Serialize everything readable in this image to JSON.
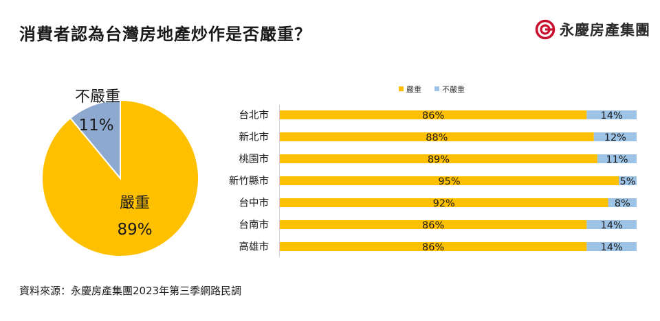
{
  "header": {
    "title": "消費者認為台灣房地產炒作是否嚴重？",
    "brand": "永慶房產集團"
  },
  "footer": {
    "source": "資料來源：永慶房產集團2023年第三季網路民調"
  },
  "colors": {
    "severe": "#FFC000",
    "not_severe": "#9DC3E6",
    "pie_not_severe": "#8EA9D0",
    "brand_red": "#C8102E"
  },
  "icons": {
    "brand": "spiral-logo-icon"
  },
  "chart_data": [
    {
      "type": "pie",
      "slices": [
        {
          "label": "嚴重",
          "value": 89,
          "display": "89%"
        },
        {
          "label": "不嚴重",
          "value": 11,
          "display": "11%"
        }
      ]
    },
    {
      "type": "bar",
      "orientation": "horizontal",
      "stacked": "percent",
      "categories": [
        "台北市",
        "新北市",
        "桃園市",
        "新竹縣市",
        "台中市",
        "台南市",
        "高雄市"
      ],
      "series": [
        {
          "name": "嚴重",
          "values": [
            86,
            88,
            89,
            95,
            92,
            86,
            86
          ]
        },
        {
          "name": "不嚴重",
          "values": [
            14,
            12,
            11,
            5,
            8,
            14,
            14
          ]
        }
      ],
      "legend": "top-center",
      "xlim": [
        0,
        100
      ],
      "grid": false
    }
  ]
}
